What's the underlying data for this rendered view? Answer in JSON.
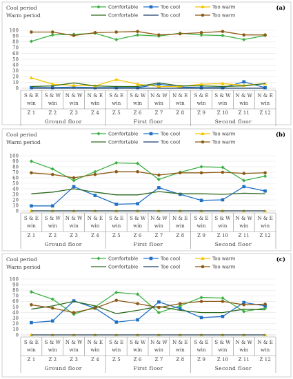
{
  "chart_data": [
    {
      "type": "line",
      "panel_label": "(a)",
      "period_labels": [
        "Cool period",
        "Warm period"
      ],
      "categories": [
        "S & E win",
        "S & W win",
        "N & W win",
        "N & E win",
        "S & E win",
        "S & W win",
        "N & W win",
        "N & E win",
        "S & E win",
        "S & W win",
        "N & W win",
        "N & E win"
      ],
      "category_lines": [
        [
          "S & E",
          "win"
        ],
        [
          "S & W",
          "win"
        ],
        [
          "N & W",
          "win"
        ],
        [
          "N & E",
          "win"
        ],
        [
          "S & E",
          "win"
        ],
        [
          "S & W",
          "win"
        ],
        [
          "N & W",
          "win"
        ],
        [
          "N & E",
          "win"
        ],
        [
          "S & E",
          "win"
        ],
        [
          "S & W",
          "win"
        ],
        [
          "N & W",
          "win"
        ],
        [
          "N & E",
          "win"
        ]
      ],
      "zones": [
        "Z 1",
        "Z 2",
        "Z 3",
        "Z 4",
        "Z 5",
        "Z 6",
        "Z 7",
        "Z 8",
        "Z 9",
        "Z 10",
        "Z 11",
        "Z 12"
      ],
      "floors": [
        "Ground floor",
        "First floor",
        "Second floor"
      ],
      "ylim": [
        0,
        100
      ],
      "yticks": [
        0,
        10,
        20,
        30,
        40,
        50,
        60,
        70,
        80,
        90,
        100
      ],
      "series": [
        {
          "name": "Comfortable",
          "period": "cool",
          "color": "#3cb043",
          "marker": "diamond",
          "values": [
            81,
            92,
            93,
            95,
            84,
            92,
            90,
            95,
            92,
            91,
            84,
            91
          ]
        },
        {
          "name": "Too cool",
          "period": "cool",
          "color": "#1f6fc5",
          "marker": "square",
          "values": [
            1,
            1,
            2,
            1,
            1,
            1,
            7,
            2,
            1,
            1,
            11,
            1
          ]
        },
        {
          "name": "Too warm",
          "period": "cool",
          "color": "#f5c400",
          "marker": "triangle",
          "values": [
            18,
            7,
            5,
            4,
            15,
            7,
            3,
            3,
            7,
            8,
            5,
            8
          ]
        },
        {
          "name": "Comfortable",
          "period": "warm",
          "color": "#2d6a1f",
          "marker": "none",
          "values": [
            3,
            4,
            9,
            4,
            3,
            3,
            9,
            4,
            4,
            3,
            4,
            8
          ]
        },
        {
          "name": "Too cool",
          "period": "warm",
          "color": "#1b3f6b",
          "marker": "none",
          "values": [
            0,
            0,
            0,
            0,
            0,
            0,
            0,
            0,
            0,
            0,
            0,
            0
          ]
        },
        {
          "name": "Too warm",
          "period": "warm",
          "color": "#8b5a14",
          "marker": "circle",
          "values": [
            97,
            97,
            91,
            96,
            97,
            98,
            92,
            94,
            96,
            98,
            92,
            92
          ]
        }
      ]
    },
    {
      "type": "line",
      "panel_label": "(b)",
      "period_labels": [
        "Cool period",
        "Warm period"
      ],
      "categories": [
        "S & E win",
        "S & W win",
        "N & W win",
        "N & E win",
        "S & E win",
        "S & W win",
        "N & W win",
        "N & E win",
        "S & E win",
        "S & W win",
        "N & W win",
        "N & E win"
      ],
      "category_lines": [
        [
          "S & E",
          "win"
        ],
        [
          "S & W",
          "win"
        ],
        [
          "N & W",
          "win"
        ],
        [
          "N & E",
          "win"
        ],
        [
          "S & E",
          "win"
        ],
        [
          "S & W",
          "win"
        ],
        [
          "N & W",
          "win"
        ],
        [
          "N & E",
          "win"
        ],
        [
          "S & E",
          "win"
        ],
        [
          "S & W",
          "win"
        ],
        [
          "N & W",
          "win"
        ],
        [
          "N & E",
          "win"
        ]
      ],
      "zones": [
        "Z 1",
        "Z 2",
        "Z 3",
        "Z 4",
        "Z 5",
        "Z 6",
        "Z 7",
        "Z 8",
        "Z 9",
        "Z 10",
        "Z 11",
        "Z 12"
      ],
      "floors": [
        "Ground floor",
        "First floor",
        "Second floor"
      ],
      "ylim": [
        0,
        100
      ],
      "yticks": [
        0,
        10,
        20,
        30,
        40,
        50,
        60,
        70,
        80,
        90,
        100
      ],
      "series": [
        {
          "name": "Comfortable",
          "period": "cool",
          "color": "#3cb043",
          "marker": "diamond",
          "values": [
            90,
            76,
            55,
            71,
            87,
            86,
            57,
            70,
            80,
            79,
            55,
            63
          ]
        },
        {
          "name": "Too cool",
          "period": "cool",
          "color": "#1f6fc5",
          "marker": "square",
          "values": [
            9,
            9,
            44,
            28,
            12,
            13,
            42,
            30,
            19,
            20,
            44,
            36
          ]
        },
        {
          "name": "Too warm",
          "period": "cool",
          "color": "#f5c400",
          "marker": "triangle",
          "values": [
            0,
            0,
            0,
            0,
            0,
            0,
            0,
            0,
            0,
            0,
            0,
            0
          ]
        },
        {
          "name": "Comfortable",
          "period": "warm",
          "color": "#2d6a1f",
          "marker": "none",
          "values": [
            31,
            34,
            40,
            34,
            29,
            29,
            35,
            31,
            31,
            30,
            32,
            31
          ]
        },
        {
          "name": "Too cool",
          "period": "warm",
          "color": "#1b3f6b",
          "marker": "none",
          "values": [
            0,
            0,
            0,
            0,
            0,
            0,
            0,
            0,
            0,
            0,
            0,
            0
          ]
        },
        {
          "name": "Too warm",
          "period": "warm",
          "color": "#8b5a14",
          "marker": "circle",
          "values": [
            69,
            66,
            60,
            66,
            71,
            71,
            65,
            69,
            69,
            70,
            68,
            69
          ]
        }
      ]
    },
    {
      "type": "line",
      "panel_label": "(c)",
      "period_labels": [
        "Cool period",
        "Warm period"
      ],
      "categories": [
        "S & E win",
        "S & W win",
        "N & W win",
        "N & E win",
        "S & E win",
        "S & W win",
        "N & W win",
        "N & E win",
        "S & E win",
        "S & W win",
        "N & W win",
        "N & E win"
      ],
      "category_lines": [
        [
          "S & E",
          "win"
        ],
        [
          "S & W",
          "win"
        ],
        [
          "N & W",
          "win"
        ],
        [
          "N & E",
          "win"
        ],
        [
          "S & E",
          "win"
        ],
        [
          "S & W",
          "win"
        ],
        [
          "N & W",
          "win"
        ],
        [
          "N & E",
          "win"
        ],
        [
          "S & E",
          "win"
        ],
        [
          "S & W",
          "win"
        ],
        [
          "N & W",
          "win"
        ],
        [
          "N & E",
          "win"
        ]
      ],
      "zones": [
        "Z 1",
        "Z 2",
        "Z 3",
        "Z 4",
        "Z 5",
        "Z 6",
        "Z 7",
        "Z 8",
        "Z 9",
        "Z 10",
        "Z 11",
        "Z 12"
      ],
      "floors": [
        "Ground floor",
        "First floor",
        "Second floor"
      ],
      "ylim": [
        0,
        100
      ],
      "yticks": [
        0,
        10,
        20,
        30,
        40,
        50,
        60,
        70,
        80,
        90,
        100
      ],
      "series": [
        {
          "name": "Comfortable",
          "period": "cool",
          "color": "#3cb043",
          "marker": "diamond",
          "values": [
            77,
            64,
            37,
            50,
            76,
            73,
            40,
            52,
            67,
            66,
            42,
            48
          ]
        },
        {
          "name": "Too cool",
          "period": "cool",
          "color": "#1f6fc5",
          "marker": "square",
          "values": [
            22,
            25,
            61,
            48,
            23,
            27,
            59,
            47,
            31,
            33,
            58,
            52
          ]
        },
        {
          "name": "Too warm",
          "period": "cool",
          "color": "#f5c400",
          "marker": "triangle",
          "values": [
            0,
            0,
            0,
            0,
            0,
            0,
            0,
            0,
            0,
            0,
            0,
            0
          ]
        },
        {
          "name": "Comfortable",
          "period": "warm",
          "color": "#2d6a1f",
          "marker": "none",
          "values": [
            46,
            52,
            60,
            52,
            38,
            44,
            51,
            44,
            40,
            40,
            46,
            45
          ]
        },
        {
          "name": "Too cool",
          "period": "warm",
          "color": "#1b3f6b",
          "marker": "none",
          "values": [
            0,
            0,
            0,
            0,
            0,
            0,
            0,
            0,
            0,
            0,
            0,
            0
          ]
        },
        {
          "name": "Too warm",
          "period": "warm",
          "color": "#8b5a14",
          "marker": "circle",
          "values": [
            54,
            48,
            40,
            48,
            62,
            56,
            49,
            56,
            60,
            60,
            54,
            55
          ]
        }
      ]
    }
  ]
}
